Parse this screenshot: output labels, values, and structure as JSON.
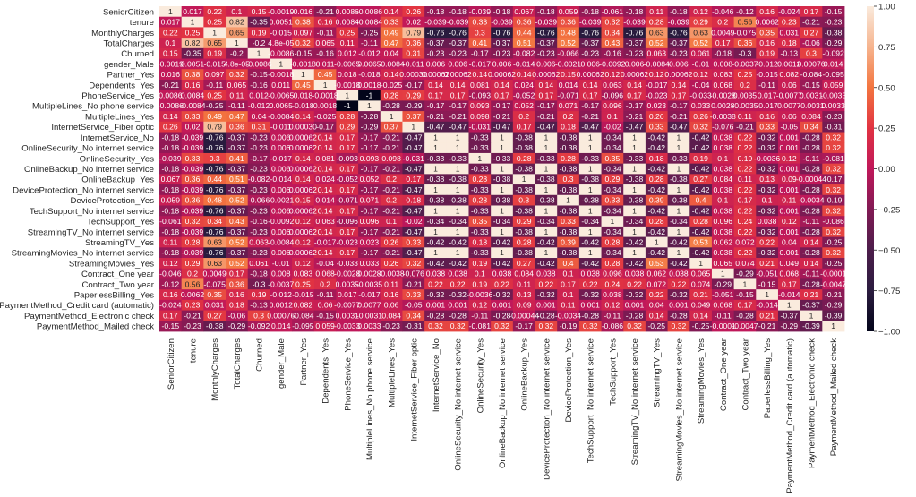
{
  "chart_data": {
    "type": "heatmap",
    "title": "",
    "xlabel": "",
    "ylabel": "",
    "colormap": "rocket",
    "vmin": -1.0,
    "vmax": 1.0,
    "annotated": true,
    "legend": "colorbar-right",
    "colorbar_ticks": [
      "1.00",
      "0.75",
      "0.50",
      "0.25",
      "0.00",
      "−0.25",
      "−0.50",
      "−0.75",
      "−1.00"
    ],
    "colorbar_tick_values": [
      1.0,
      0.75,
      0.5,
      0.25,
      0.0,
      -0.25,
      -0.5,
      -0.75,
      -1.0
    ],
    "labels": [
      "SeniorCitizen",
      "tenure",
      "MonthlyCharges",
      "TotalCharges",
      "Churned",
      "gender_Male",
      "Partner_Yes",
      "Dependents_Yes",
      "PhoneService_Yes",
      "MultipleLines_No phone service",
      "MultipleLines_Yes",
      "InternetService_Fiber optic",
      "InternetService_No",
      "OnlineSecurity_No internet service",
      "OnlineSecurity_Yes",
      "OnlineBackup_No internet service",
      "OnlineBackup_Yes",
      "DeviceProtection_No internet service",
      "DeviceProtection_Yes",
      "TechSupport_No internet service",
      "TechSupport_Yes",
      "StreamingTV_No internet service",
      "StreamingTV_Yes",
      "StreamingMovies_No internet service",
      "StreamingMovies_Yes",
      "Contract_One year",
      "Contract_Two year",
      "PaperlessBilling_Yes",
      "PaymentMethod_Credit card (automatic)",
      "PaymentMethod_Electronic check",
      "PaymentMethod_Mailed check"
    ],
    "matrix_text": [
      [
        "1",
        "0.017",
        "0.22",
        "0.1",
        "0.15",
        "-0.0019",
        "0.016",
        "-0.21",
        "0.0086",
        "-0.0086",
        "0.14",
        "0.26",
        "-0.18",
        "-0.18",
        "-0.039",
        "-0.18",
        "0.067",
        "-0.18",
        "0.059",
        "-0.18",
        "-0.061",
        "-0.18",
        "0.11",
        "-0.18",
        "0.12",
        "-0.046",
        "-0.12",
        "0.16",
        "-0.024",
        "0.17",
        "-0.15"
      ],
      [
        "0.017",
        "1",
        "0.25",
        "0.82",
        "-0.35",
        "0.0051",
        "0.38",
        "0.16",
        "0.0084",
        "-0.0084",
        "0.33",
        "0.02",
        "-0.039",
        "-0.039",
        "0.33",
        "-0.039",
        "0.36",
        "-0.039",
        "0.36",
        "-0.039",
        "0.32",
        "-0.039",
        "0.28",
        "-0.039",
        "0.29",
        "0.2",
        "0.56",
        "0.0062",
        "0.23",
        "-0.21",
        "-0.23"
      ],
      [
        "0.22",
        "0.25",
        "1",
        "0.65",
        "0.19",
        "-0.015",
        "0.097",
        "-0.11",
        "0.25",
        "-0.25",
        "0.49",
        "0.79",
        "-0.76",
        "-0.76",
        "0.3",
        "-0.76",
        "0.44",
        "-0.76",
        "0.48",
        "-0.76",
        "0.34",
        "-0.76",
        "0.63",
        "-0.76",
        "0.63",
        "0.0049",
        "-0.075",
        "0.35",
        "0.031",
        "0.27",
        "-0.38"
      ],
      [
        "0.1",
        "0.82",
        "0.65",
        "1",
        "-0.2",
        "4.8e-05",
        "0.32",
        "0.065",
        "0.11",
        "-0.11",
        "0.47",
        "0.36",
        "-0.37",
        "-0.37",
        "0.41",
        "-0.37",
        "0.51",
        "-0.37",
        "0.52",
        "-0.37",
        "0.43",
        "-0.37",
        "0.52",
        "-0.37",
        "0.52",
        "0.17",
        "0.36",
        "0.16",
        "0.18",
        "-0.06",
        "-0.29"
      ],
      [
        "0.15",
        "-0.35",
        "0.19",
        "-0.2",
        "1",
        "-0.0086",
        "-0.15",
        "-0.16",
        "0.012",
        "-0.012",
        "0.04",
        "0.31",
        "-0.23",
        "-0.23",
        "-0.17",
        "-0.23",
        "-0.082",
        "-0.23",
        "-0.066",
        "-0.23",
        "-0.16",
        "-0.23",
        "0.063",
        "-0.23",
        "0.061",
        "-0.18",
        "-0.3",
        "0.19",
        "-0.13",
        "0.3",
        "-0.092"
      ],
      [
        "-0.0019",
        "0.0051",
        "-0.015",
        "4.8e-05",
        "-0.0086",
        "1",
        "-0.0018",
        "0.011",
        "-0.0065",
        "0.0065",
        "-0.0084",
        "-0.011",
        "0.006",
        "0.006",
        "-0.017",
        "0.006",
        "-0.014",
        "0.006",
        "-0.0021",
        "0.006",
        "-0.0092",
        "0.006",
        "-0.0084",
        "0.006",
        "-0.01",
        "0.008",
        "-0.0037",
        "-0.012",
        "0.0012",
        "0.00076",
        "0.014"
      ],
      [
        "0.016",
        "0.38",
        "0.097",
        "0.32",
        "-0.15",
        "-0.0018",
        "1",
        "0.45",
        "0.018",
        "-0.018",
        "0.14",
        "0.00030",
        "0.00062",
        "0.00062",
        "0.14",
        "0.00062",
        "0.14",
        "0.00062",
        "0.15",
        "0.00062",
        "0.12",
        "0.00062",
        "0.12",
        "0.00062",
        "0.12",
        "0.083",
        "0.25",
        "-0.015",
        "0.082",
        "-0.084",
        "-0.095"
      ],
      [
        "-0.21",
        "0.16",
        "-0.11",
        "0.065",
        "-0.16",
        "0.011",
        "0.45",
        "1",
        "-0.0018",
        "0.0018",
        "-0.025",
        "-0.17",
        "0.14",
        "0.14",
        "0.081",
        "0.14",
        "0.024",
        "0.14",
        "0.014",
        "0.14",
        "0.063",
        "0.14",
        "-0.017",
        "0.14",
        "-0.04",
        "0.068",
        "0.2",
        "-0.11",
        "0.06",
        "-0.15",
        "0.059"
      ],
      [
        "0.0086",
        "0.0084",
        "0.25",
        "0.11",
        "0.012",
        "-0.0065",
        "0.018",
        "-0.0018",
        "1",
        "-1",
        "0.28",
        "0.29",
        "0.17",
        "0.17",
        "-0.093",
        "0.17",
        "-0.052",
        "0.17",
        "-0.071",
        "0.17",
        "-0.096",
        "0.17",
        "-0.023",
        "0.17",
        "-0.033",
        "-0.0028",
        "0.0035",
        "0.017",
        "-0.0077",
        "0.0031",
        "-0.0033"
      ],
      [
        "-0.0086",
        "-0.0084",
        "-0.25",
        "-0.11",
        "-0.012",
        "0.0065",
        "-0.018",
        "0.0018",
        "-1",
        "1",
        "-0.28",
        "-0.29",
        "-0.17",
        "-0.17",
        "0.093",
        "-0.17",
        "0.052",
        "-0.17",
        "0.071",
        "-0.17",
        "0.096",
        "-0.17",
        "0.023",
        "-0.17",
        "0.033",
        "0.0028",
        "-0.0035",
        "-0.017",
        "0.0077",
        "-0.0031",
        "0.0033"
      ],
      [
        "0.14",
        "0.33",
        "0.49",
        "0.47",
        "0.04",
        "-0.0084",
        "0.14",
        "-0.025",
        "0.28",
        "-0.28",
        "1",
        "0.37",
        "-0.21",
        "-0.21",
        "0.098",
        "-0.21",
        "0.2",
        "-0.21",
        "0.2",
        "-0.21",
        "0.1",
        "-0.21",
        "0.26",
        "-0.21",
        "0.26",
        "-0.0038",
        "0.11",
        "0.16",
        "0.06",
        "0.084",
        "-0.23"
      ],
      [
        "0.26",
        "0.02",
        "0.79",
        "0.36",
        "0.31",
        "-0.011",
        "0.00030",
        "-0.17",
        "0.29",
        "-0.29",
        "0.37",
        "1",
        "-0.47",
        "-0.47",
        "-0.031",
        "-0.47",
        "0.17",
        "-0.47",
        "0.18",
        "-0.47",
        "-0.02",
        "-0.47",
        "0.33",
        "-0.47",
        "0.32",
        "-0.076",
        "-0.21",
        "0.33",
        "-0.05",
        "0.34",
        "-0.31"
      ],
      [
        "-0.18",
        "-0.039",
        "-0.76",
        "-0.37",
        "-0.23",
        "0.006",
        "0.00062",
        "0.14",
        "0.17",
        "-0.17",
        "-0.21",
        "-0.47",
        "1",
        "1",
        "-0.33",
        "1",
        "-0.38",
        "1",
        "-0.38",
        "1",
        "-0.34",
        "1",
        "-0.42",
        "1",
        "-0.42",
        "0.038",
        "0.22",
        "-0.32",
        "0.001",
        "-0.28",
        "0.32"
      ],
      [
        "-0.18",
        "-0.039",
        "-0.76",
        "-0.37",
        "-0.23",
        "0.006",
        "0.00062",
        "0.14",
        "0.17",
        "-0.17",
        "-0.21",
        "-0.47",
        "1",
        "1",
        "-0.33",
        "1",
        "-0.38",
        "1",
        "-0.38",
        "1",
        "-0.34",
        "1",
        "-0.42",
        "1",
        "-0.42",
        "0.038",
        "0.22",
        "-0.32",
        "0.001",
        "-0.28",
        "0.32"
      ],
      [
        "-0.039",
        "0.33",
        "0.3",
        "0.41",
        "-0.17",
        "-0.017",
        "0.14",
        "0.081",
        "-0.093",
        "0.093",
        "0.098",
        "-0.031",
        "-0.33",
        "-0.33",
        "1",
        "-0.33",
        "0.28",
        "-0.33",
        "0.28",
        "-0.33",
        "0.35",
        "-0.33",
        "0.18",
        "-0.33",
        "0.19",
        "0.1",
        "0.19",
        "-0.0036",
        "0.12",
        "-0.11",
        "-0.081"
      ],
      [
        "-0.18",
        "-0.039",
        "-0.76",
        "-0.37",
        "-0.23",
        "0.006",
        "0.00062",
        "0.14",
        "0.17",
        "-0.17",
        "-0.21",
        "-0.47",
        "1",
        "1",
        "-0.33",
        "1",
        "-0.38",
        "1",
        "-0.38",
        "1",
        "-0.34",
        "1",
        "-0.42",
        "1",
        "-0.42",
        "0.038",
        "0.22",
        "-0.32",
        "0.001",
        "-0.28",
        "0.32"
      ],
      [
        "0.067",
        "0.36",
        "0.44",
        "0.51",
        "-0.082",
        "-0.014",
        "0.14",
        "0.024",
        "-0.052",
        "0.052",
        "0.2",
        "0.17",
        "-0.38",
        "-0.38",
        "0.28",
        "-0.38",
        "1",
        "-0.38",
        "0.3",
        "-0.38",
        "0.29",
        "-0.38",
        "0.28",
        "-0.38",
        "0.27",
        "0.084",
        "0.11",
        "0.13",
        "0.09",
        "-0.00044",
        "-0.17"
      ],
      [
        "-0.18",
        "-0.039",
        "-0.76",
        "-0.37",
        "-0.23",
        "0.006",
        "0.00062",
        "0.14",
        "0.17",
        "-0.17",
        "-0.21",
        "-0.47",
        "1",
        "1",
        "-0.33",
        "1",
        "-0.38",
        "1",
        "-0.38",
        "1",
        "-0.34",
        "1",
        "-0.42",
        "1",
        "-0.42",
        "0.038",
        "0.22",
        "-0.32",
        "0.001",
        "-0.28",
        "0.32"
      ],
      [
        "0.059",
        "0.36",
        "0.48",
        "0.52",
        "-0.066",
        "-0.0021",
        "0.15",
        "0.014",
        "-0.071",
        "0.071",
        "0.2",
        "0.18",
        "-0.38",
        "-0.38",
        "0.28",
        "-0.38",
        "0.3",
        "-0.38",
        "1",
        "-0.38",
        "0.33",
        "-0.38",
        "0.39",
        "-0.38",
        "0.4",
        "0.1",
        "0.17",
        "0.1",
        "0.11",
        "-0.0034",
        "-0.19"
      ],
      [
        "-0.18",
        "-0.039",
        "-0.76",
        "-0.37",
        "-0.23",
        "0.006",
        "0.00062",
        "0.14",
        "0.17",
        "-0.17",
        "-0.21",
        "-0.47",
        "1",
        "1",
        "-0.33",
        "1",
        "-0.38",
        "1",
        "-0.38",
        "1",
        "-0.34",
        "1",
        "-0.42",
        "1",
        "-0.42",
        "0.038",
        "0.22",
        "-0.32",
        "0.001",
        "-0.28",
        "0.32"
      ],
      [
        "-0.061",
        "0.32",
        "0.34",
        "0.43",
        "-0.16",
        "-0.0092",
        "0.12",
        "0.063",
        "-0.096",
        "0.096",
        "0.1",
        "-0.02",
        "-0.34",
        "-0.34",
        "0.35",
        "-0.34",
        "0.29",
        "-0.34",
        "0.33",
        "-0.34",
        "1",
        "-0.34",
        "0.28",
        "-0.34",
        "0.28",
        "0.096",
        "0.24",
        "0.038",
        "0.12",
        "-0.11",
        "-0.086"
      ],
      [
        "-0.18",
        "-0.039",
        "-0.76",
        "-0.37",
        "-0.23",
        "0.006",
        "0.00062",
        "0.14",
        "0.17",
        "-0.17",
        "-0.21",
        "-0.47",
        "1",
        "1",
        "-0.33",
        "1",
        "-0.38",
        "1",
        "-0.38",
        "1",
        "-0.34",
        "1",
        "-0.42",
        "1",
        "-0.42",
        "0.038",
        "0.22",
        "-0.32",
        "0.001",
        "-0.28",
        "0.32"
      ],
      [
        "0.11",
        "0.28",
        "0.63",
        "0.52",
        "0.063",
        "-0.0084",
        "0.12",
        "-0.017",
        "-0.023",
        "0.023",
        "0.26",
        "0.33",
        "-0.42",
        "-0.42",
        "0.18",
        "-0.42",
        "0.28",
        "-0.42",
        "0.39",
        "-0.42",
        "0.28",
        "-0.42",
        "1",
        "-0.42",
        "0.53",
        "0.062",
        "0.072",
        "0.22",
        "0.04",
        "0.14",
        "-0.25"
      ],
      [
        "-0.18",
        "-0.039",
        "-0.76",
        "-0.37",
        "-0.23",
        "0.006",
        "0.00062",
        "0.14",
        "0.17",
        "-0.17",
        "-0.21",
        "-0.47",
        "1",
        "1",
        "-0.33",
        "1",
        "-0.38",
        "1",
        "-0.38",
        "1",
        "-0.34",
        "1",
        "-0.42",
        "1",
        "-0.42",
        "0.038",
        "0.22",
        "-0.32",
        "0.001",
        "-0.28",
        "0.32"
      ],
      [
        "0.12",
        "0.29",
        "0.63",
        "0.52",
        "0.061",
        "-0.01",
        "0.12",
        "-0.04",
        "-0.033",
        "0.033",
        "0.26",
        "0.32",
        "-0.42",
        "-0.42",
        "0.19",
        "-0.42",
        "0.27",
        "-0.42",
        "0.4",
        "-0.42",
        "0.28",
        "-0.42",
        "0.53",
        "-0.42",
        "1",
        "0.065",
        "0.074",
        "0.21",
        "0.049",
        "0.14",
        "-0.25"
      ],
      [
        "-0.046",
        "0.2",
        "0.0049",
        "0.17",
        "-0.18",
        "0.008",
        "0.083",
        "0.068",
        "-0.0028",
        "0.0028",
        "-0.0038",
        "-0.076",
        "0.038",
        "0.038",
        "0.1",
        "0.038",
        "0.084",
        "0.038",
        "0.1",
        "0.038",
        "0.096",
        "0.038",
        "0.062",
        "0.038",
        "0.065",
        "1",
        "-0.29",
        "-0.051",
        "0.068",
        "-0.11",
        "-0.0001"
      ],
      [
        "-0.12",
        "0.56",
        "-0.075",
        "0.36",
        "-0.3",
        "-0.0037",
        "0.25",
        "0.2",
        "0.0035",
        "-0.0035",
        "0.11",
        "-0.21",
        "0.22",
        "0.22",
        "0.19",
        "0.22",
        "0.11",
        "0.22",
        "0.17",
        "0.22",
        "0.24",
        "0.22",
        "0.072",
        "0.22",
        "0.074",
        "-0.29",
        "1",
        "-0.15",
        "0.17",
        "-0.28",
        "-0.0047"
      ],
      [
        "0.16",
        "0.0062",
        "0.35",
        "0.16",
        "0.19",
        "-0.012",
        "-0.015",
        "-0.11",
        "0.017",
        "-0.017",
        "0.16",
        "0.33",
        "-0.32",
        "-0.32",
        "-0.0036",
        "-0.32",
        "0.13",
        "-0.32",
        "0.1",
        "-0.32",
        "0.038",
        "-0.32",
        "0.22",
        "-0.32",
        "0.21",
        "-0.051",
        "-0.15",
        "1",
        "-0.014",
        "0.21",
        "-0.21"
      ],
      [
        "-0.024",
        "0.23",
        "0.031",
        "0.18",
        "-0.13",
        "0.0012",
        "0.082",
        "0.06",
        "-0.0077",
        "0.0077",
        "0.06",
        "-0.05",
        "0.001",
        "0.001",
        "0.12",
        "0.001",
        "0.09",
        "0.001",
        "0.11",
        "0.001",
        "0.12",
        "0.001",
        "0.04",
        "0.001",
        "0.049",
        "0.068",
        "0.17",
        "-0.014",
        "1",
        "-0.37",
        "-0.29"
      ],
      [
        "0.17",
        "-0.21",
        "0.27",
        "-0.06",
        "0.3",
        "0.00076",
        "-0.084",
        "-0.15",
        "0.0031",
        "-0.0031",
        "0.084",
        "0.34",
        "-0.28",
        "-0.28",
        "-0.11",
        "-0.28",
        "-0.00044",
        "-0.28",
        "-0.0034",
        "-0.28",
        "-0.11",
        "-0.28",
        "0.14",
        "-0.28",
        "0.14",
        "-0.11",
        "-0.28",
        "0.21",
        "-0.37",
        "1",
        "-0.39"
      ],
      [
        "-0.15",
        "-0.23",
        "-0.38",
        "-0.29",
        "-0.092",
        "0.014",
        "-0.095",
        "0.059",
        "-0.0033",
        "0.0033",
        "-0.23",
        "-0.31",
        "0.32",
        "0.32",
        "-0.081",
        "0.32",
        "-0.17",
        "0.32",
        "-0.19",
        "0.32",
        "-0.086",
        "0.32",
        "-0.25",
        "0.32",
        "-0.25",
        "-0.0001",
        "-0.0047",
        "-0.21",
        "-0.29",
        "-0.39",
        "1"
      ]
    ]
  }
}
